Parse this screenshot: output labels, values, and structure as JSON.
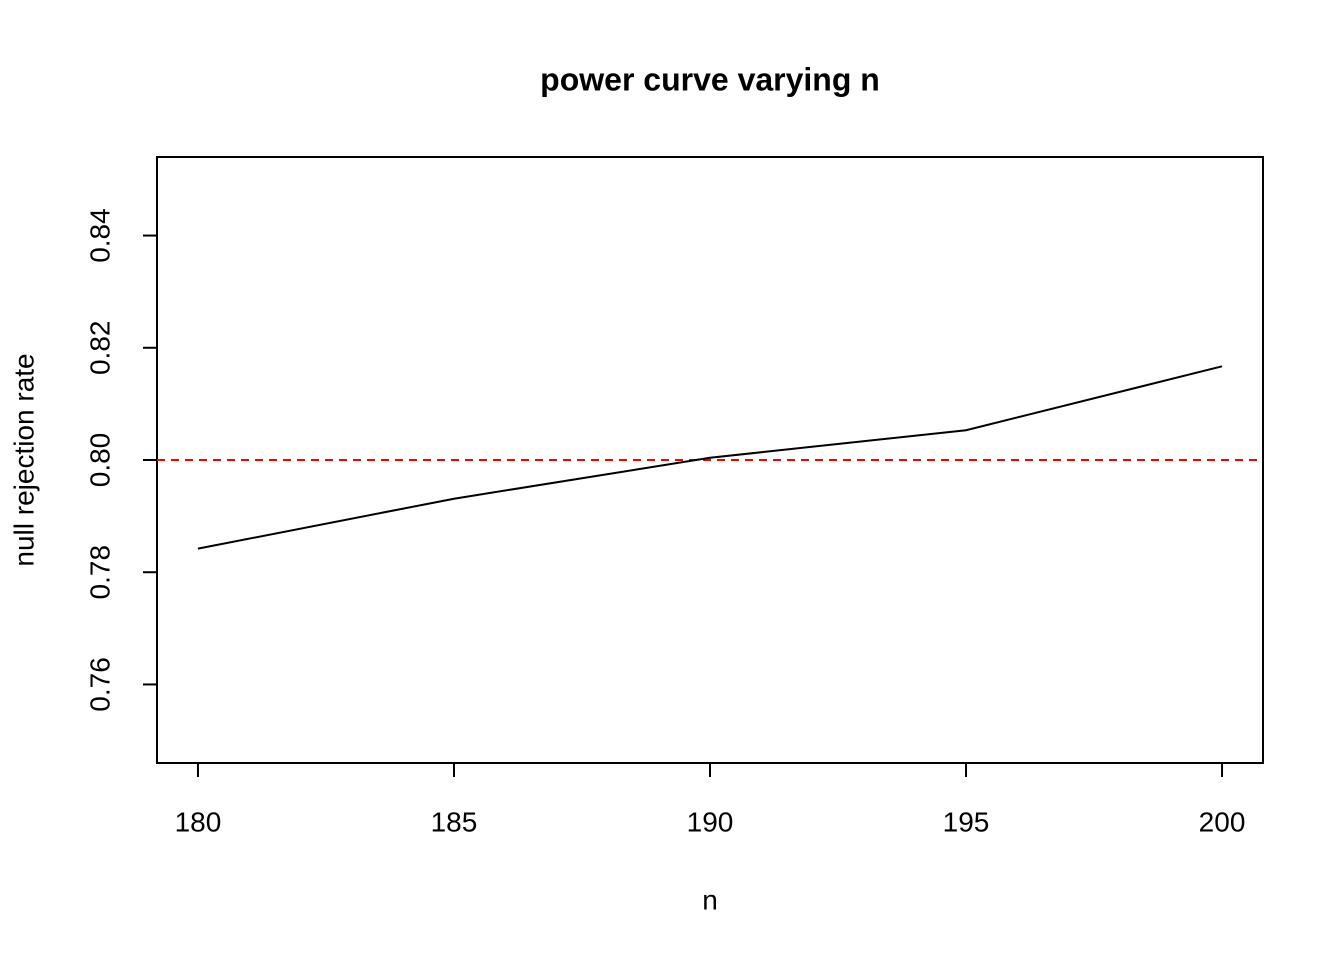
{
  "chart_data": {
    "type": "line",
    "title": "power curve varying n",
    "xlabel": "n",
    "ylabel": "null rejection rate",
    "x": [
      180,
      185,
      190,
      195,
      200
    ],
    "series": [
      {
        "color": "#000000",
        "values": [
          0.7842,
          0.7931,
          0.8004,
          0.8053,
          0.8167
        ]
      }
    ],
    "xlim": [
      179.2,
      200.8
    ],
    "ylim": [
      0.746,
      0.854
    ],
    "xticks": [
      180,
      185,
      190,
      195,
      200
    ],
    "yticks": [
      0.76,
      0.78,
      {
        "value": 0.8,
        "label": "0.80"
      },
      0.82,
      0.84
    ],
    "reference_line": {
      "value": 0.8,
      "color": "#ff0000",
      "style": "dashed"
    }
  }
}
